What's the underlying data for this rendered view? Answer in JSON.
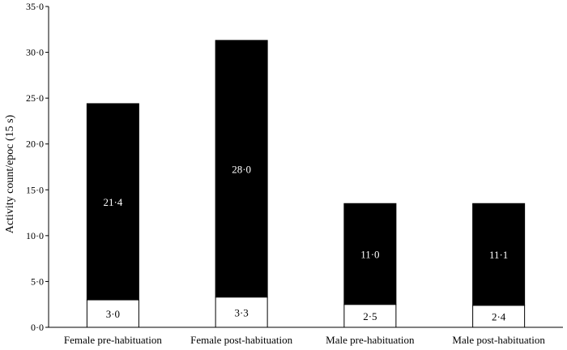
{
  "chart_data": {
    "type": "bar",
    "stacked": true,
    "ylabel": "Activity  count/epoc (15 s)",
    "ylim": [
      0,
      35
    ],
    "yticks": [
      "0·0",
      "5·0",
      "10·0",
      "15·0",
      "20·0",
      "25·0",
      "30·0",
      "35·0"
    ],
    "ytick_values": [
      0,
      5,
      10,
      15,
      20,
      25,
      30,
      35
    ],
    "grid": false,
    "categories": [
      "Female pre-habituation",
      "Female post-habituation",
      "Male pre-habituation",
      "Male post-habituation"
    ],
    "series": [
      {
        "color": "#ffffff",
        "values": [
          3.0,
          3.3,
          2.5,
          2.4
        ],
        "labels": [
          "3·0",
          "3·3",
          "2·5",
          "2·4"
        ]
      },
      {
        "color": "#000000",
        "values": [
          21.4,
          28.0,
          11.0,
          11.1
        ],
        "labels": [
          "21·4",
          "28·0",
          "11·0",
          "11·1"
        ]
      }
    ]
  }
}
